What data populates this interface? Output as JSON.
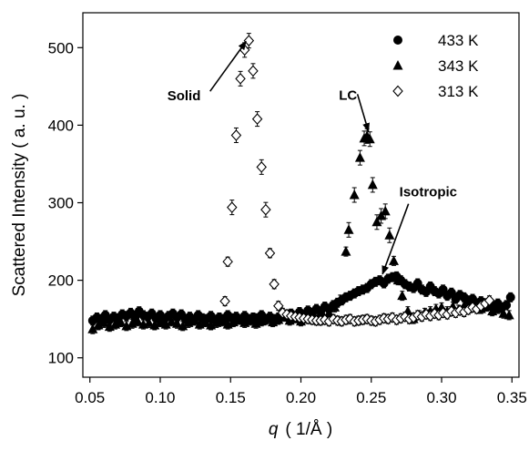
{
  "chart_data": {
    "type": "scatter",
    "xlabel_symbol": "q",
    "xlabel_unit": "( 1/Å )",
    "ylabel": "Scattered Intensity ( a. u. )",
    "xlim": [
      0.045,
      0.355
    ],
    "ylim": [
      75,
      545
    ],
    "xticks": [
      "0.05",
      "0.10",
      "0.15",
      "0.20",
      "0.25",
      "0.30",
      "0.35"
    ],
    "yticks": [
      "100",
      "200",
      "300",
      "400",
      "500"
    ],
    "grid": false,
    "legend_position": "top-right",
    "series": [
      {
        "name": "433 K",
        "marker": "filled-circle",
        "color": "#000000",
        "x": [
          0.052,
          0.055,
          0.058,
          0.061,
          0.064,
          0.067,
          0.07,
          0.073,
          0.076,
          0.079,
          0.082,
          0.085,
          0.088,
          0.091,
          0.094,
          0.097,
          0.1,
          0.103,
          0.106,
          0.109,
          0.112,
          0.115,
          0.118,
          0.121,
          0.124,
          0.127,
          0.13,
          0.133,
          0.136,
          0.139,
          0.142,
          0.145,
          0.148,
          0.151,
          0.154,
          0.157,
          0.16,
          0.163,
          0.166,
          0.169,
          0.172,
          0.175,
          0.178,
          0.181,
          0.184,
          0.187,
          0.19,
          0.193,
          0.196,
          0.199,
          0.202,
          0.205,
          0.208,
          0.211,
          0.214,
          0.217,
          0.22,
          0.223,
          0.226,
          0.229,
          0.232,
          0.235,
          0.238,
          0.241,
          0.244,
          0.247,
          0.25,
          0.253,
          0.256,
          0.259,
          0.262,
          0.265,
          0.268,
          0.271,
          0.274,
          0.277,
          0.28,
          0.283,
          0.286,
          0.289,
          0.292,
          0.295,
          0.298,
          0.301,
          0.304,
          0.307,
          0.31,
          0.313,
          0.316,
          0.319,
          0.322,
          0.325,
          0.328,
          0.331,
          0.334,
          0.337,
          0.34,
          0.343,
          0.346,
          0.349
        ],
        "y": [
          148,
          152,
          150,
          155,
          149,
          153,
          151,
          156,
          154,
          158,
          152,
          160,
          155,
          153,
          157,
          151,
          155,
          150,
          154,
          157,
          152,
          156,
          150,
          153,
          148,
          155,
          151,
          150,
          154,
          149,
          152,
          150,
          155,
          151,
          153,
          149,
          154,
          150,
          152,
          151,
          155,
          149,
          153,
          150,
          152,
          155,
          153,
          157,
          152,
          159,
          155,
          161,
          158,
          163,
          160,
          166,
          163,
          168,
          171,
          174,
          178,
          180,
          183,
          186,
          188,
          190,
          195,
          198,
          200,
          196,
          202,
          204,
          205,
          200,
          195,
          192,
          190,
          196,
          188,
          185,
          192,
          186,
          183,
          188,
          180,
          184,
          176,
          181,
          178,
          174,
          176,
          170,
          173,
          168,
          171,
          166,
          170,
          165,
          168,
          178
        ]
      },
      {
        "name": "343 K",
        "marker": "filled-triangle",
        "color": "#000000",
        "x": [
          0.052,
          0.056,
          0.06,
          0.064,
          0.068,
          0.072,
          0.076,
          0.08,
          0.084,
          0.088,
          0.092,
          0.096,
          0.1,
          0.104,
          0.108,
          0.112,
          0.116,
          0.12,
          0.124,
          0.128,
          0.132,
          0.136,
          0.14,
          0.144,
          0.148,
          0.152,
          0.156,
          0.16,
          0.164,
          0.168,
          0.172,
          0.176,
          0.18,
          0.184,
          0.188,
          0.192,
          0.196,
          0.2,
          0.204,
          0.208,
          0.212,
          0.216,
          0.22,
          0.224,
          0.228,
          0.232,
          0.234,
          0.238,
          0.242,
          0.245,
          0.247,
          0.249,
          0.251,
          0.254,
          0.257,
          0.26,
          0.263,
          0.266,
          0.269,
          0.272,
          0.276,
          0.28,
          0.284,
          0.288,
          0.292,
          0.296,
          0.3,
          0.304,
          0.308,
          0.312,
          0.316,
          0.32,
          0.324,
          0.328,
          0.332,
          0.336,
          0.34,
          0.344,
          0.348
        ],
        "y": [
          137,
          142,
          145,
          140,
          143,
          146,
          141,
          144,
          147,
          143,
          145,
          142,
          146,
          143,
          147,
          144,
          141,
          145,
          148,
          143,
          146,
          142,
          145,
          147,
          143,
          146,
          149,
          145,
          148,
          144,
          147,
          150,
          146,
          149,
          153,
          148,
          151,
          147,
          152,
          155,
          150,
          154,
          158,
          165,
          175,
          237,
          265,
          310,
          358,
          383,
          386,
          382,
          323,
          275,
          283,
          289,
          258,
          225,
          200,
          180,
          160,
          150,
          155,
          158,
          160,
          163,
          165,
          160,
          166,
          162,
          167,
          164,
          168,
          163,
          166,
          160,
          163,
          157,
          155
        ]
      },
      {
        "name": "313 K",
        "marker": "open-diamond",
        "color": "#000000",
        "x": [
          0.146,
          0.148,
          0.151,
          0.154,
          0.157,
          0.16,
          0.163,
          0.166,
          0.169,
          0.172,
          0.175,
          0.178,
          0.181,
          0.184,
          0.187,
          0.19,
          0.193,
          0.196,
          0.199,
          0.202,
          0.205,
          0.208,
          0.211,
          0.214,
          0.217,
          0.22,
          0.223,
          0.226,
          0.229,
          0.232,
          0.235,
          0.238,
          0.241,
          0.244,
          0.247,
          0.25,
          0.253,
          0.256,
          0.259,
          0.262,
          0.265,
          0.268,
          0.271,
          0.274,
          0.277,
          0.28,
          0.283,
          0.286,
          0.289,
          0.292,
          0.295,
          0.298,
          0.301,
          0.304,
          0.307,
          0.31,
          0.313,
          0.316,
          0.319,
          0.322,
          0.325,
          0.328,
          0.331,
          0.334
        ],
        "y": [
          173,
          224,
          294,
          387,
          460,
          497,
          509,
          470,
          408,
          346,
          291,
          235,
          195,
          167,
          158,
          156,
          154,
          153,
          152,
          151,
          150,
          149,
          148,
          148,
          149,
          147,
          150,
          148,
          147,
          149,
          150,
          147,
          148,
          149,
          150,
          148,
          147,
          149,
          151,
          150,
          152,
          149,
          151,
          153,
          150,
          152,
          155,
          153,
          156,
          154,
          157,
          155,
          158,
          156,
          160,
          158,
          161,
          159,
          162,
          165,
          163,
          167,
          170,
          174
        ]
      }
    ],
    "annotations": [
      {
        "text": "Solid",
        "x": 0.105,
        "y": 432,
        "arrow_to": [
          0.161,
          508
        ]
      },
      {
        "text": "LC",
        "x": 0.227,
        "y": 433,
        "arrow_to": [
          0.248,
          392
        ]
      },
      {
        "text": "Isotropic",
        "x": 0.27,
        "y": 308,
        "arrow_to": [
          0.258,
          208
        ]
      }
    ]
  }
}
